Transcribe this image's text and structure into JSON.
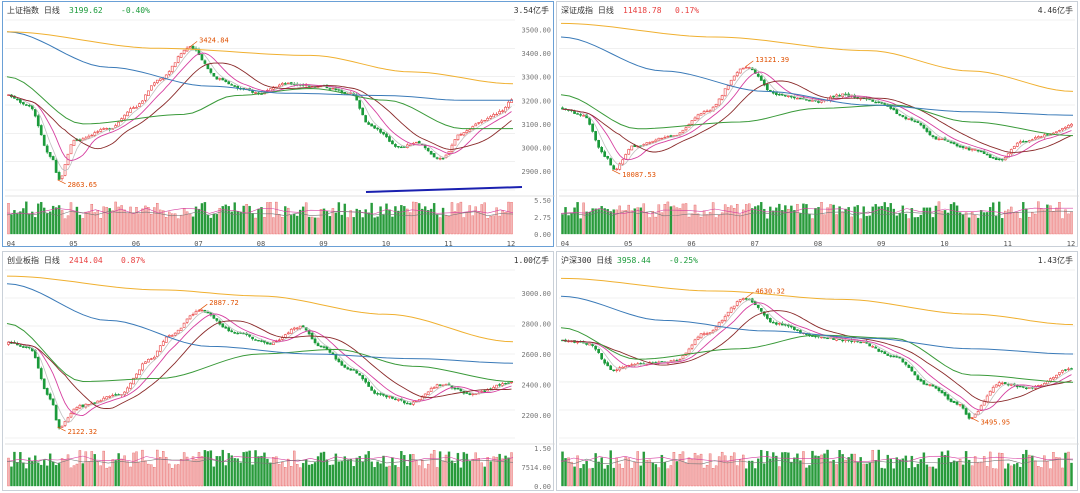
{
  "colors": {
    "up": "#e84040",
    "down": "#1a9a3a",
    "ma5": "#c0c0c0",
    "ma10": "#d63fa0",
    "ma20": "#8a2a2a",
    "ma60": "#3a9a3a",
    "ma120": "#3a7ab8",
    "ma250": "#f0b030",
    "annot": "#e05000",
    "trend": "#1a20b0",
    "grid": "#e6e6e6"
  },
  "chart_data": [
    {
      "type": "candlestick",
      "title": "上证指数",
      "period": "日线",
      "last": "3199.62",
      "change": "-0.40%",
      "change_dir": "down",
      "vol_unit": "3.54亿手",
      "ylim": [
        2820,
        3540
      ],
      "yticks": [
        "3500.00",
        "3400.00",
        "3300.00",
        "3200.00",
        "3100.00",
        "3000.00",
        "2900.00"
      ],
      "vol_ticks": [
        "5.50",
        "2.75",
        "0.00"
      ],
      "months": [
        "04",
        "05",
        "06",
        "07",
        "08",
        "09",
        "10",
        "11",
        "12"
      ],
      "high_label": "3424.84",
      "low_label": "2863.65",
      "trendline": true,
      "start": 3220,
      "end": 3199,
      "high": {
        "v": 3424,
        "t": 0.36
      },
      "low": {
        "v": 2863,
        "t": 0.1
      },
      "anchors": [
        [
          0,
          3220
        ],
        [
          0.04,
          3180
        ],
        [
          0.085,
          2960
        ],
        [
          0.1,
          2863
        ],
        [
          0.13,
          3030
        ],
        [
          0.2,
          3080
        ],
        [
          0.25,
          3170
        ],
        [
          0.3,
          3290
        ],
        [
          0.36,
          3424
        ],
        [
          0.42,
          3290
        ],
        [
          0.46,
          3250
        ],
        [
          0.5,
          3230
        ],
        [
          0.55,
          3270
        ],
        [
          0.62,
          3260
        ],
        [
          0.68,
          3230
        ],
        [
          0.72,
          3090
        ],
        [
          0.78,
          3000
        ],
        [
          0.81,
          3020
        ],
        [
          0.86,
          2950
        ],
        [
          0.9,
          3060
        ],
        [
          0.94,
          3110
        ],
        [
          0.98,
          3150
        ],
        [
          1.0,
          3199
        ]
      ],
      "ma_anchors": {
        "ma60": [
          [
            0,
            3300
          ],
          [
            0.15,
            3100
          ],
          [
            0.35,
            3140
          ],
          [
            0.45,
            3220
          ],
          [
            0.6,
            3250
          ],
          [
            0.75,
            3200
          ],
          [
            0.9,
            3080
          ],
          [
            1,
            3080
          ]
        ],
        "ma120": [
          [
            0,
            3490
          ],
          [
            0.2,
            3340
          ],
          [
            0.4,
            3260
          ],
          [
            0.55,
            3230
          ],
          [
            0.75,
            3220
          ],
          [
            0.9,
            3200
          ],
          [
            1,
            3200
          ]
        ],
        "ma250": [
          [
            0,
            3490
          ],
          [
            0.3,
            3420
          ],
          [
            0.6,
            3390
          ],
          [
            0.8,
            3320
          ],
          [
            1,
            3270
          ]
        ]
      }
    },
    {
      "type": "candlestick",
      "title": "深证成指",
      "period": "日线",
      "last": "11418.78",
      "change": "0.17%",
      "change_dir": "up",
      "vol_unit": "4.46亿手",
      "ylim": [
        9500,
        14500
      ],
      "yticks": [],
      "vol_ticks": [],
      "months": [
        "04",
        "05",
        "06",
        "07",
        "08",
        "09",
        "10",
        "11",
        "12"
      ],
      "high_label": "13121.39",
      "low_label": "10087.53",
      "trendline": false,
      "start": 11900,
      "end": 11418,
      "high": {
        "v": 13121,
        "t": 0.36
      },
      "low": {
        "v": 10087,
        "t": 0.1
      },
      "anchors": [
        [
          0,
          11900
        ],
        [
          0.04,
          11700
        ],
        [
          0.085,
          10500
        ],
        [
          0.1,
          10087
        ],
        [
          0.14,
          10800
        ],
        [
          0.22,
          11100
        ],
        [
          0.28,
          11800
        ],
        [
          0.36,
          13121
        ],
        [
          0.42,
          12300
        ],
        [
          0.5,
          12100
        ],
        [
          0.55,
          12300
        ],
        [
          0.62,
          12100
        ],
        [
          0.68,
          11600
        ],
        [
          0.74,
          11000
        ],
        [
          0.8,
          10700
        ],
        [
          0.86,
          10400
        ],
        [
          0.9,
          10900
        ],
        [
          0.95,
          11100
        ],
        [
          1.0,
          11418
        ]
      ],
      "ma_anchors": {
        "ma60": [
          [
            0,
            12300
          ],
          [
            0.15,
            11300
          ],
          [
            0.35,
            11500
          ],
          [
            0.5,
            11900
          ],
          [
            0.65,
            12000
          ],
          [
            0.8,
            11500
          ],
          [
            1,
            11100
          ]
        ],
        "ma120": [
          [
            0,
            14000
          ],
          [
            0.2,
            13000
          ],
          [
            0.4,
            12400
          ],
          [
            0.6,
            12000
          ],
          [
            0.8,
            11800
          ],
          [
            1,
            11700
          ]
        ],
        "ma250": [
          [
            0,
            14400
          ],
          [
            0.3,
            14000
          ],
          [
            0.6,
            13600
          ],
          [
            0.8,
            13000
          ],
          [
            1,
            12400
          ]
        ]
      }
    },
    {
      "type": "candlestick",
      "title": "创业板指",
      "period": "日线",
      "last": "2414.04",
      "change": "0.87%",
      "change_dir": "up",
      "vol_unit": "1.00亿手",
      "ylim": [
        2050,
        3150
      ],
      "yticks": [
        "3000.00",
        "2800.00",
        "2600.00",
        "2400.00",
        "2200.00"
      ],
      "vol_ticks": [
        "1.50",
        "7514.00",
        "0.00"
      ],
      "months": [],
      "high_label": "2887.72",
      "low_label": "2122.32",
      "trendline": false,
      "start": 2660,
      "end": 2414,
      "high": {
        "v": 2887,
        "t": 0.38
      },
      "low": {
        "v": 2122,
        "t": 0.1
      },
      "anchors": [
        [
          0,
          2680
        ],
        [
          0.04,
          2640
        ],
        [
          0.085,
          2300
        ],
        [
          0.1,
          2122
        ],
        [
          0.14,
          2260
        ],
        [
          0.22,
          2330
        ],
        [
          0.28,
          2560
        ],
        [
          0.32,
          2720
        ],
        [
          0.38,
          2887
        ],
        [
          0.45,
          2740
        ],
        [
          0.52,
          2670
        ],
        [
          0.58,
          2780
        ],
        [
          0.62,
          2650
        ],
        [
          0.68,
          2500
        ],
        [
          0.74,
          2330
        ],
        [
          0.8,
          2280
        ],
        [
          0.86,
          2400
        ],
        [
          0.92,
          2340
        ],
        [
          1.0,
          2414
        ]
      ],
      "ma_anchors": {
        "ma60": [
          [
            0,
            2800
          ],
          [
            0.15,
            2420
          ],
          [
            0.3,
            2440
          ],
          [
            0.5,
            2600
          ],
          [
            0.65,
            2630
          ],
          [
            0.8,
            2520
          ],
          [
            1,
            2420
          ]
        ],
        "ma120": [
          [
            0,
            3060
          ],
          [
            0.2,
            2820
          ],
          [
            0.4,
            2650
          ],
          [
            0.6,
            2600
          ],
          [
            0.8,
            2570
          ],
          [
            1,
            2540
          ]
        ],
        "ma250": [
          [
            0,
            3110
          ],
          [
            0.3,
            3020
          ],
          [
            0.5,
            2980
          ],
          [
            0.75,
            2860
          ],
          [
            1,
            2680
          ]
        ]
      }
    },
    {
      "type": "candlestick",
      "title": "沪深300",
      "period": "日线",
      "last": "3958.44",
      "change": "-0.25%",
      "change_dir": "down",
      "vol_unit": "1.43亿手",
      "ylim": [
        3300,
        4900
      ],
      "yticks": [],
      "vol_ticks": [],
      "months": [],
      "high_label": "4630.32",
      "low_label": "3495.95",
      "trendline": false,
      "start": 4230,
      "end": 3958,
      "high": {
        "v": 4630,
        "t": 0.36
      },
      "low": {
        "v": 3495,
        "t": 0.8
      },
      "anchors": [
        [
          0,
          4230
        ],
        [
          0.05,
          4200
        ],
        [
          0.1,
          3950
        ],
        [
          0.14,
          4000
        ],
        [
          0.22,
          4030
        ],
        [
          0.28,
          4300
        ],
        [
          0.36,
          4630
        ],
        [
          0.42,
          4390
        ],
        [
          0.5,
          4260
        ],
        [
          0.58,
          4220
        ],
        [
          0.65,
          4080
        ],
        [
          0.72,
          3800
        ],
        [
          0.78,
          3620
        ],
        [
          0.8,
          3495
        ],
        [
          0.86,
          3820
        ],
        [
          0.92,
          3780
        ],
        [
          1.0,
          3958
        ]
      ],
      "ma_anchors": {
        "ma60": [
          [
            0,
            4350
          ],
          [
            0.15,
            4050
          ],
          [
            0.35,
            4150
          ],
          [
            0.5,
            4280
          ],
          [
            0.65,
            4250
          ],
          [
            0.8,
            3900
          ],
          [
            1,
            3830
          ]
        ],
        "ma120": [
          [
            0,
            4650
          ],
          [
            0.2,
            4420
          ],
          [
            0.4,
            4320
          ],
          [
            0.6,
            4250
          ],
          [
            0.8,
            4150
          ],
          [
            1,
            4100
          ]
        ],
        "ma250": [
          [
            0,
            4820
          ],
          [
            0.3,
            4700
          ],
          [
            0.55,
            4620
          ],
          [
            0.8,
            4480
          ],
          [
            1,
            4380
          ]
        ]
      }
    }
  ]
}
